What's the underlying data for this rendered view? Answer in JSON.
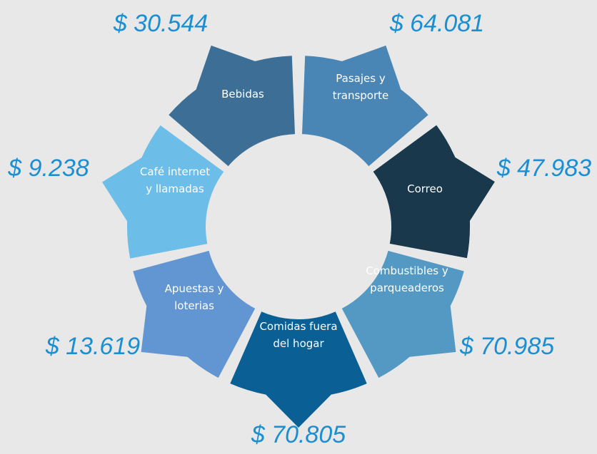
{
  "segments": [
    {
      "lines": [
        "Bebidas"
      ],
      "value": "$ 30.544"
    },
    {
      "lines": [
        "Pasajes y",
        "transporte"
      ],
      "value": "$ 64.081"
    },
    {
      "lines": [
        "Correo"
      ],
      "value": "$ 47.983"
    },
    {
      "lines": [
        "Combustibles y",
        "parqueaderos"
      ],
      "value": "$ 70.985"
    },
    {
      "lines": [
        "Comidas fuera",
        "del hogar"
      ],
      "value": "$ 70.805"
    },
    {
      "lines": [
        "Apuestas y",
        "loterias"
      ],
      "value": "$ 13.619"
    },
    {
      "lines": [
        "Café internet",
        "y llamadas"
      ],
      "value": "$ 9.238"
    }
  ]
}
